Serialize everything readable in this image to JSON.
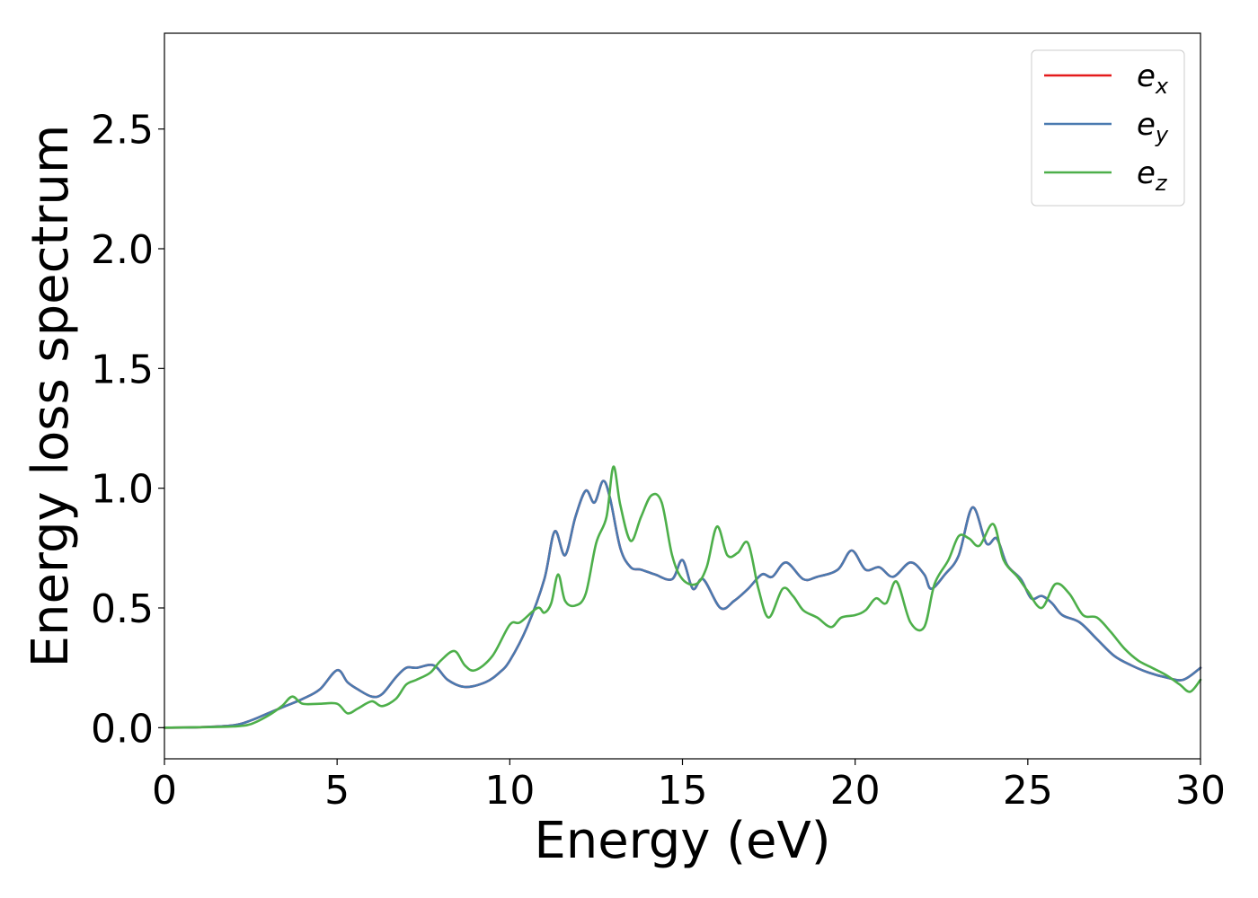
{
  "chart_data": {
    "type": "line",
    "title": "",
    "xlabel": "Energy (eV)",
    "ylabel": "Energy loss spectrum",
    "xlim": [
      0,
      30
    ],
    "ylim": [
      -0.13,
      2.9
    ],
    "xticks": [
      0,
      5,
      10,
      15,
      20,
      25,
      30
    ],
    "xtick_labels": [
      "0",
      "5",
      "10",
      "15",
      "20",
      "25",
      "30"
    ],
    "yticks": [
      0.0,
      0.5,
      1.0,
      1.5,
      2.0,
      2.5
    ],
    "ytick_labels": [
      "0.0",
      "0.5",
      "1.0",
      "1.5",
      "2.0",
      "2.5"
    ],
    "grid": false,
    "legend_position": "top-right",
    "series": [
      {
        "name": "e_x",
        "label_main": "e",
        "label_sub": "x",
        "color": "#e41a1c",
        "x": [
          0,
          1,
          2,
          2.5,
          3,
          3.5,
          4,
          4.5,
          5,
          5.3,
          5.6,
          6,
          6.3,
          6.7,
          7,
          7.3,
          7.8,
          8.2,
          8.7,
          9.3,
          9.7,
          10,
          10.5,
          11,
          11.3,
          11.6,
          11.9,
          12.2,
          12.45,
          12.7,
          12.9,
          13.2,
          13.5,
          13.8,
          14.2,
          14.7,
          15,
          15.3,
          15.6,
          16.1,
          16.5,
          16.9,
          17.3,
          17.6,
          18,
          18.5,
          18.9,
          19.5,
          19.9,
          20.3,
          20.7,
          21.1,
          21.6,
          22,
          22.2,
          22.6,
          23,
          23.4,
          23.8,
          24.1,
          24.4,
          24.8,
          25.1,
          25.4,
          25.7,
          26,
          26.5,
          27,
          27.5,
          28,
          28.5,
          29,
          29.5,
          30
        ],
        "y": [
          0,
          0.002,
          0.01,
          0.03,
          0.06,
          0.09,
          0.12,
          0.16,
          0.24,
          0.19,
          0.16,
          0.13,
          0.14,
          0.21,
          0.25,
          0.25,
          0.26,
          0.2,
          0.17,
          0.19,
          0.23,
          0.28,
          0.42,
          0.62,
          0.82,
          0.72,
          0.88,
          0.99,
          0.94,
          1.03,
          0.96,
          0.75,
          0.67,
          0.66,
          0.64,
          0.62,
          0.7,
          0.58,
          0.62,
          0.5,
          0.53,
          0.58,
          0.64,
          0.63,
          0.69,
          0.62,
          0.63,
          0.66,
          0.74,
          0.66,
          0.67,
          0.63,
          0.69,
          0.64,
          0.58,
          0.64,
          0.72,
          0.92,
          0.77,
          0.79,
          0.68,
          0.62,
          0.54,
          0.55,
          0.52,
          0.47,
          0.44,
          0.37,
          0.3,
          0.26,
          0.23,
          0.21,
          0.2,
          0.25
        ]
      },
      {
        "name": "e_y",
        "label_main": "e",
        "label_sub": "y",
        "color": "#4a7ab0",
        "x": [
          0,
          1,
          2,
          2.5,
          3,
          3.5,
          4,
          4.5,
          5,
          5.3,
          5.6,
          6,
          6.3,
          6.7,
          7,
          7.3,
          7.8,
          8.2,
          8.7,
          9.3,
          9.7,
          10,
          10.5,
          11,
          11.3,
          11.6,
          11.9,
          12.2,
          12.45,
          12.7,
          12.9,
          13.2,
          13.5,
          13.8,
          14.2,
          14.7,
          15,
          15.3,
          15.6,
          16.1,
          16.5,
          16.9,
          17.3,
          17.6,
          18,
          18.5,
          18.9,
          19.5,
          19.9,
          20.3,
          20.7,
          21.1,
          21.6,
          22,
          22.2,
          22.6,
          23,
          23.4,
          23.8,
          24.1,
          24.4,
          24.8,
          25.1,
          25.4,
          25.7,
          26,
          26.5,
          27,
          27.5,
          28,
          28.5,
          29,
          29.5,
          30
        ],
        "y": [
          0,
          0.002,
          0.01,
          0.03,
          0.06,
          0.09,
          0.12,
          0.16,
          0.24,
          0.19,
          0.16,
          0.13,
          0.14,
          0.21,
          0.25,
          0.25,
          0.26,
          0.2,
          0.17,
          0.19,
          0.23,
          0.28,
          0.42,
          0.62,
          0.82,
          0.72,
          0.88,
          0.99,
          0.94,
          1.03,
          0.96,
          0.75,
          0.67,
          0.66,
          0.64,
          0.62,
          0.7,
          0.58,
          0.62,
          0.5,
          0.53,
          0.58,
          0.64,
          0.63,
          0.69,
          0.62,
          0.63,
          0.66,
          0.74,
          0.66,
          0.67,
          0.63,
          0.69,
          0.64,
          0.58,
          0.64,
          0.72,
          0.92,
          0.77,
          0.79,
          0.68,
          0.62,
          0.54,
          0.55,
          0.52,
          0.47,
          0.44,
          0.37,
          0.3,
          0.26,
          0.23,
          0.21,
          0.2,
          0.25
        ]
      },
      {
        "name": "e_z",
        "label_main": "e",
        "label_sub": "z",
        "color": "#4daf4a",
        "x": [
          0,
          1,
          2,
          2.5,
          3,
          3.4,
          3.7,
          4,
          4.5,
          5,
          5.3,
          5.6,
          6,
          6.3,
          6.7,
          7,
          7.3,
          7.7,
          8,
          8.4,
          8.7,
          9,
          9.5,
          10,
          10.3,
          10.8,
          11,
          11.2,
          11.4,
          11.6,
          11.9,
          12.2,
          12.5,
          12.8,
          13,
          13.2,
          13.5,
          13.8,
          14.1,
          14.4,
          14.7,
          15,
          15.4,
          15.7,
          16,
          16.3,
          16.6,
          16.9,
          17.2,
          17.5,
          17.9,
          18.2,
          18.5,
          18.9,
          19.3,
          19.6,
          20,
          20.3,
          20.6,
          20.9,
          21.2,
          21.6,
          22,
          22.3,
          22.7,
          23,
          23.3,
          23.6,
          24,
          24.3,
          24.7,
          25,
          25.4,
          25.8,
          26.2,
          26.6,
          27,
          27.4,
          27.8,
          28.2,
          28.6,
          29,
          29.4,
          29.7,
          30
        ],
        "y": [
          0,
          0.002,
          0.005,
          0.015,
          0.05,
          0.09,
          0.13,
          0.1,
          0.1,
          0.1,
          0.06,
          0.08,
          0.11,
          0.09,
          0.12,
          0.18,
          0.2,
          0.23,
          0.28,
          0.32,
          0.26,
          0.24,
          0.3,
          0.43,
          0.44,
          0.5,
          0.48,
          0.52,
          0.64,
          0.53,
          0.51,
          0.56,
          0.77,
          0.88,
          1.09,
          0.93,
          0.78,
          0.88,
          0.97,
          0.94,
          0.72,
          0.62,
          0.6,
          0.67,
          0.84,
          0.72,
          0.73,
          0.77,
          0.58,
          0.46,
          0.58,
          0.55,
          0.49,
          0.46,
          0.42,
          0.46,
          0.47,
          0.49,
          0.54,
          0.52,
          0.61,
          0.44,
          0.42,
          0.6,
          0.7,
          0.8,
          0.79,
          0.76,
          0.85,
          0.7,
          0.63,
          0.57,
          0.5,
          0.6,
          0.56,
          0.47,
          0.46,
          0.4,
          0.33,
          0.28,
          0.25,
          0.22,
          0.18,
          0.15,
          0.2
        ]
      }
    ]
  }
}
